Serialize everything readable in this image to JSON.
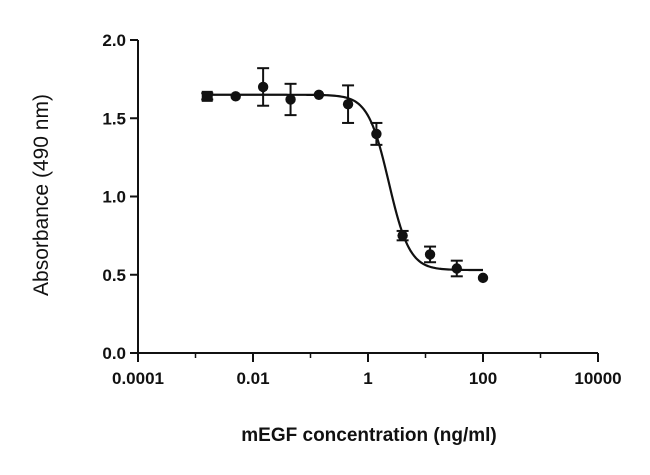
{
  "chart_data": {
    "type": "scatter",
    "title": "",
    "xlabel": "mEGF concentration (ng/ml)",
    "ylabel": "Absorbance (490 nm)",
    "x_scale": "log",
    "xlim": [
      0.0001,
      10000
    ],
    "ylim": [
      0.0,
      2.0
    ],
    "x_ticks": [
      0.0001,
      0.01,
      1,
      100,
      10000
    ],
    "x_tick_labels": [
      "0.0001",
      "0.01",
      "1",
      "100",
      "10000"
    ],
    "y_ticks": [
      0.0,
      0.5,
      1.0,
      1.5,
      2.0
    ],
    "y_tick_labels": [
      "0.0",
      "0.5",
      "1.0",
      "1.5",
      "2.0"
    ],
    "grid": false,
    "legend": "none",
    "series": [
      {
        "points": [
          {
            "x": 0.0016,
            "y": 1.64,
            "err": 0.02,
            "marker": "square"
          },
          {
            "x": 0.005,
            "y": 1.64,
            "err": 0.0,
            "marker": "circle"
          },
          {
            "x": 0.015,
            "y": 1.7,
            "err": 0.12,
            "marker": "circle"
          },
          {
            "x": 0.045,
            "y": 1.62,
            "err": 0.1,
            "marker": "circle"
          },
          {
            "x": 0.14,
            "y": 1.65,
            "err": 0.0,
            "marker": "circle"
          },
          {
            "x": 0.45,
            "y": 1.59,
            "err": 0.12,
            "marker": "circle"
          },
          {
            "x": 1.4,
            "y": 1.4,
            "err": 0.07,
            "marker": "circle"
          },
          {
            "x": 4.0,
            "y": 0.75,
            "err": 0.03,
            "marker": "circle"
          },
          {
            "x": 12,
            "y": 0.63,
            "err": 0.05,
            "marker": "circle"
          },
          {
            "x": 35,
            "y": 0.54,
            "err": 0.05,
            "marker": "circle"
          },
          {
            "x": 100,
            "y": 0.48,
            "err": 0.0,
            "marker": "circle"
          }
        ]
      }
    ],
    "fit_curve": {
      "model": "four-parameter logistic",
      "top": 1.65,
      "bottom": 0.53,
      "ec50": 2.3,
      "hill_slope": 2.4,
      "x_range": [
        0.0016,
        100
      ]
    },
    "style": {
      "axis_color": "#111111",
      "mark_color": "#111111"
    }
  }
}
